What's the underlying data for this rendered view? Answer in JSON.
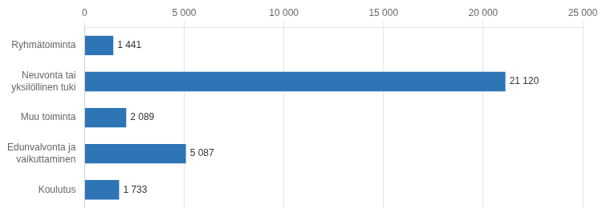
{
  "chart_data": {
    "type": "bar",
    "orientation": "horizontal",
    "categories": [
      "Ryhmätoiminta",
      "Neuvonta tai\nyksilöllinen tuki",
      "Muu toiminta",
      "Edunvalvonta ja\nvaikuttaminen",
      "Koulutus"
    ],
    "values": [
      1441,
      21120,
      2089,
      5087,
      1733
    ],
    "value_labels": [
      "1 441",
      "21 120",
      "2 089",
      "5 087",
      "1 733"
    ],
    "data_labels": true,
    "color": "#2E75B6",
    "xlim": [
      0,
      25000
    ],
    "xticks": [
      0,
      {
        "value": 5000,
        "label": "5 000"
      },
      {
        "value": 10000,
        "label": "10 000"
      },
      {
        "value": 15000,
        "label": "15 000"
      },
      {
        "value": 20000,
        "label": "20 000"
      },
      {
        "value": 25000,
        "label": "25 000"
      }
    ],
    "grid": true
  }
}
